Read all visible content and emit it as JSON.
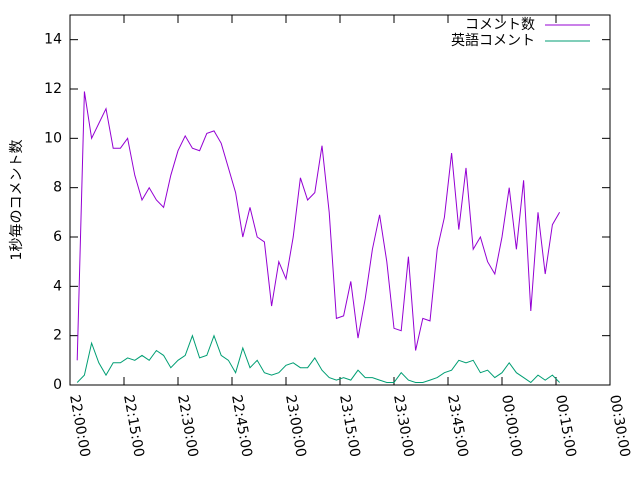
{
  "chart_data": {
    "type": "line",
    "y_label": "1秒毎のコメント数",
    "x": [
      "22:02:00",
      "22:04:00",
      "22:06:00",
      "22:08:00",
      "22:10:00",
      "22:12:00",
      "22:14:00",
      "22:16:00",
      "22:18:00",
      "22:20:00",
      "22:22:00",
      "22:24:00",
      "22:26:00",
      "22:28:00",
      "22:30:00",
      "22:32:00",
      "22:34:00",
      "22:36:00",
      "22:38:00",
      "22:40:00",
      "22:42:00",
      "22:44:00",
      "22:46:00",
      "22:48:00",
      "22:50:00",
      "22:52:00",
      "22:54:00",
      "22:56:00",
      "22:58:00",
      "23:00:00",
      "23:02:00",
      "23:04:00",
      "23:06:00",
      "23:08:00",
      "23:10:00",
      "23:12:00",
      "23:14:00",
      "23:16:00",
      "23:18:00",
      "23:20:00",
      "23:22:00",
      "23:24:00",
      "23:26:00",
      "23:28:00",
      "23:30:00",
      "23:32:00",
      "23:34:00",
      "23:36:00",
      "23:38:00",
      "23:40:00",
      "23:42:00",
      "23:44:00",
      "23:46:00",
      "23:48:00",
      "23:50:00",
      "23:52:00",
      "23:54:00",
      "23:56:00",
      "23:58:00",
      "00:00:00",
      "00:02:00",
      "00:04:00",
      "00:06:00",
      "00:08:00",
      "00:10:00",
      "00:12:00",
      "00:14:00",
      "00:16:00"
    ],
    "series": [
      {
        "name": "コメント数",
        "color": "#9400d3",
        "values": [
          1.0,
          11.9,
          10.0,
          10.6,
          11.2,
          9.6,
          9.6,
          10.0,
          8.5,
          7.5,
          8.0,
          7.5,
          7.2,
          8.5,
          9.5,
          10.1,
          9.6,
          9.5,
          10.2,
          10.3,
          9.8,
          8.8,
          7.8,
          6.0,
          7.2,
          6.0,
          5.8,
          3.2,
          5.0,
          4.3,
          6.0,
          8.4,
          7.5,
          7.8,
          9.7,
          7.0,
          2.7,
          2.8,
          4.2,
          1.9,
          3.5,
          5.5,
          6.9,
          5.0,
          2.3,
          2.2,
          5.2,
          1.4,
          2.7,
          2.6,
          5.5,
          6.8,
          9.4,
          6.3,
          8.8,
          5.5,
          6.0,
          5.0,
          4.5,
          6.0,
          8.0,
          5.5,
          8.3,
          3.0,
          7.0,
          4.5,
          6.5,
          7.0
        ]
      },
      {
        "name": "英語コメント",
        "color": "#009e73",
        "values": [
          0.1,
          0.4,
          1.7,
          0.9,
          0.4,
          0.9,
          0.9,
          1.1,
          1.0,
          1.2,
          1.0,
          1.4,
          1.2,
          0.7,
          1.0,
          1.2,
          2.0,
          1.1,
          1.2,
          2.0,
          1.2,
          1.0,
          0.5,
          1.5,
          0.7,
          1.0,
          0.5,
          0.4,
          0.5,
          0.8,
          0.9,
          0.7,
          0.7,
          1.1,
          0.6,
          0.3,
          0.2,
          0.3,
          0.2,
          0.6,
          0.3,
          0.3,
          0.2,
          0.1,
          0.1,
          0.5,
          0.2,
          0.1,
          0.1,
          0.2,
          0.3,
          0.5,
          0.6,
          1.0,
          0.9,
          1.0,
          0.5,
          0.6,
          0.3,
          0.5,
          0.9,
          0.5,
          0.3,
          0.1,
          0.4,
          0.2,
          0.4,
          0.1
        ]
      }
    ],
    "xlim": [
      "22:00:00",
      "00:30:00"
    ],
    "xticks": [
      "22:00:00",
      "22:15:00",
      "22:30:00",
      "22:45:00",
      "23:00:00",
      "23:15:00",
      "23:30:00",
      "23:45:00",
      "00:00:00",
      "00:15:00",
      "00:30:00"
    ],
    "ylim": [
      0,
      15
    ],
    "yticks": [
      0,
      2,
      4,
      6,
      8,
      10,
      12,
      14
    ],
    "legend": "top-right"
  }
}
